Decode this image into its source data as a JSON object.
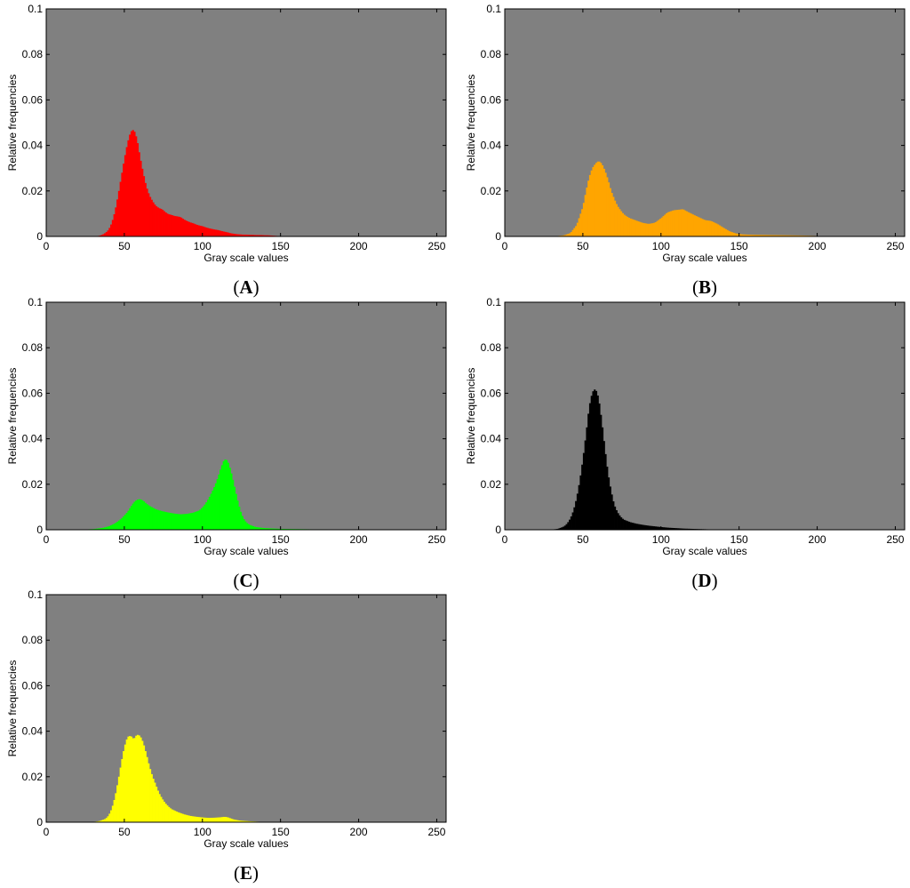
{
  "chart_data": [
    {
      "panel_label": "A",
      "type": "bar",
      "xlabel": "Gray scale values",
      "ylabel": "Relative frequencies",
      "xlim": [
        0,
        256
      ],
      "ylim": [
        0,
        0.1
      ],
      "xticks": [
        0,
        50,
        100,
        150,
        200,
        250
      ],
      "yticks": [
        0,
        0.02,
        0.04,
        0.06,
        0.08,
        0.1
      ],
      "ytick_labels": [
        "0",
        "0.02",
        "0.04",
        "0.06",
        "0.08",
        "0.1"
      ],
      "color": "#ff0000",
      "background": "#808080",
      "bin_width": 1,
      "x": [
        32,
        34,
        36,
        38,
        40,
        42,
        44,
        46,
        48,
        50,
        52,
        54,
        56,
        58,
        60,
        62,
        64,
        66,
        68,
        70,
        72,
        74,
        76,
        78,
        80,
        82,
        84,
        86,
        88,
        90,
        92,
        94,
        96,
        98,
        100,
        102,
        104,
        106,
        108,
        110,
        112,
        114,
        116,
        118,
        120,
        122,
        124,
        126,
        128,
        130,
        132,
        134,
        136,
        138,
        140,
        142,
        144,
        146,
        148,
        150,
        155
      ],
      "values": [
        0.0001,
        0.0003,
        0.0008,
        0.0016,
        0.003,
        0.006,
        0.011,
        0.018,
        0.026,
        0.034,
        0.041,
        0.046,
        0.047,
        0.043,
        0.035,
        0.028,
        0.022,
        0.018,
        0.0155,
        0.0135,
        0.0125,
        0.012,
        0.0108,
        0.0098,
        0.0095,
        0.009,
        0.0088,
        0.0085,
        0.0075,
        0.0068,
        0.0062,
        0.0058,
        0.0052,
        0.0048,
        0.0045,
        0.004,
        0.0036,
        0.0033,
        0.003,
        0.0028,
        0.0024,
        0.0021,
        0.0018,
        0.0014,
        0.0012,
        0.001,
        0.0009,
        0.0008,
        0.0008,
        0.0007,
        0.0007,
        0.0006,
        0.0006,
        0.0006,
        0.0005,
        0.0005,
        0.0004,
        0.0003,
        0.0002,
        0.0001,
        0.0
      ]
    },
    {
      "panel_label": "B",
      "type": "bar",
      "xlabel": "Gray scale values",
      "ylabel": "Relative frequencies",
      "xlim": [
        0,
        256
      ],
      "ylim": [
        0,
        0.1
      ],
      "xticks": [
        0,
        50,
        100,
        150,
        200,
        250
      ],
      "yticks": [
        0,
        0.02,
        0.04,
        0.06,
        0.08,
        0.1
      ],
      "ytick_labels": [
        "0",
        "0.02",
        "0.04",
        "0.06",
        "0.08",
        "0.1"
      ],
      "color": "#ffa500",
      "background": "#808080",
      "bin_width": 1,
      "x": [
        30,
        34,
        38,
        42,
        46,
        50,
        52,
        54,
        56,
        58,
        60,
        62,
        64,
        66,
        68,
        70,
        72,
        74,
        76,
        78,
        80,
        84,
        88,
        92,
        96,
        100,
        104,
        108,
        112,
        114,
        116,
        120,
        124,
        128,
        130,
        132,
        136,
        140,
        144,
        148,
        152,
        160,
        170,
        180,
        190,
        200,
        210
      ],
      "values": [
        0.0001,
        0.0002,
        0.0005,
        0.0015,
        0.005,
        0.013,
        0.02,
        0.026,
        0.03,
        0.032,
        0.0332,
        0.032,
        0.029,
        0.025,
        0.02,
        0.0165,
        0.0135,
        0.0115,
        0.0098,
        0.0088,
        0.008,
        0.007,
        0.006,
        0.0055,
        0.006,
        0.008,
        0.0105,
        0.0115,
        0.0118,
        0.012,
        0.0112,
        0.0098,
        0.0085,
        0.0072,
        0.007,
        0.0068,
        0.0055,
        0.0038,
        0.0022,
        0.0013,
        0.0009,
        0.0007,
        0.0006,
        0.0005,
        0.0004,
        0.0002,
        0.0
      ]
    },
    {
      "panel_label": "C",
      "type": "bar",
      "xlabel": "Gray scale values",
      "ylabel": "Relative frequencies",
      "xlim": [
        0,
        256
      ],
      "ylim": [
        0,
        0.1
      ],
      "xticks": [
        0,
        50,
        100,
        150,
        200,
        250
      ],
      "yticks": [
        0,
        0.02,
        0.04,
        0.06,
        0.08,
        0.1
      ],
      "ytick_labels": [
        "0",
        "0.02",
        "0.04",
        "0.06",
        "0.08",
        "0.1"
      ],
      "color": "#00ff00",
      "background": "#808080",
      "bin_width": 1,
      "x": [
        20,
        30,
        36,
        40,
        44,
        48,
        52,
        54,
        56,
        58,
        60,
        62,
        64,
        66,
        68,
        70,
        74,
        78,
        82,
        86,
        90,
        94,
        98,
        100,
        102,
        104,
        106,
        108,
        110,
        112,
        114,
        116,
        118,
        120,
        122,
        124,
        126,
        128,
        130,
        134,
        140,
        150,
        160,
        170,
        180,
        190,
        200
      ],
      "values": [
        0.0,
        0.0003,
        0.0008,
        0.0015,
        0.0028,
        0.0048,
        0.0078,
        0.01,
        0.012,
        0.0132,
        0.0135,
        0.0128,
        0.0115,
        0.0105,
        0.0098,
        0.009,
        0.0082,
        0.0076,
        0.0071,
        0.0068,
        0.007,
        0.0075,
        0.0085,
        0.0098,
        0.0115,
        0.0138,
        0.0165,
        0.0195,
        0.0232,
        0.0275,
        0.031,
        0.0305,
        0.0262,
        0.0205,
        0.0142,
        0.0088,
        0.0052,
        0.0032,
        0.0022,
        0.0012,
        0.0007,
        0.0004,
        0.0003,
        0.0002,
        0.0002,
        0.0001,
        0.0
      ]
    },
    {
      "panel_label": "D",
      "type": "bar",
      "xlabel": "Gray scale values",
      "ylabel": "Relative frequencies",
      "xlim": [
        0,
        256
      ],
      "ylim": [
        0,
        0.1
      ],
      "xticks": [
        0,
        50,
        100,
        150,
        200,
        250
      ],
      "yticks": [
        0,
        0.02,
        0.04,
        0.06,
        0.08,
        0.1
      ],
      "ytick_labels": [
        "0",
        "0.02",
        "0.04",
        "0.06",
        "0.08",
        "0.1"
      ],
      "color": "#000000",
      "background": "#808080",
      "bin_width": 1,
      "x": [
        30,
        34,
        38,
        40,
        42,
        44,
        46,
        48,
        50,
        52,
        54,
        56,
        58,
        60,
        62,
        64,
        66,
        68,
        70,
        72,
        74,
        76,
        80,
        84,
        88,
        92,
        96,
        100,
        105,
        110,
        115,
        120,
        125,
        130,
        140
      ],
      "values": [
        0.0001,
        0.0004,
        0.0015,
        0.0028,
        0.005,
        0.0085,
        0.014,
        0.0215,
        0.031,
        0.042,
        0.054,
        0.0605,
        0.062,
        0.058,
        0.048,
        0.036,
        0.025,
        0.017,
        0.011,
        0.0078,
        0.0058,
        0.0045,
        0.0034,
        0.0027,
        0.0022,
        0.0018,
        0.0015,
        0.0012,
        0.0009,
        0.0007,
        0.0005,
        0.0004,
        0.0003,
        0.0002,
        0.0
      ]
    },
    {
      "panel_label": "E",
      "type": "bar",
      "xlabel": "Gray scale values",
      "ylabel": "Relative frequencies",
      "xlim": [
        0,
        256
      ],
      "ylim": [
        0,
        0.1
      ],
      "xticks": [
        0,
        50,
        100,
        150,
        200,
        250
      ],
      "yticks": [
        0,
        0.02,
        0.04,
        0.06,
        0.08,
        0.1
      ],
      "ytick_labels": [
        "0",
        "0.02",
        "0.04",
        "0.06",
        "0.08",
        "0.1"
      ],
      "color": "#ffff00",
      "background": "#808080",
      "bin_width": 1,
      "x": [
        30,
        34,
        38,
        40,
        42,
        44,
        46,
        48,
        50,
        52,
        54,
        56,
        58,
        60,
        62,
        64,
        66,
        68,
        70,
        72,
        74,
        76,
        78,
        80,
        84,
        88,
        92,
        96,
        100,
        104,
        108,
        112,
        114,
        116,
        118,
        120,
        124,
        130,
        136,
        140
      ],
      "values": [
        0.0001,
        0.0005,
        0.0015,
        0.003,
        0.006,
        0.011,
        0.018,
        0.026,
        0.033,
        0.0375,
        0.038,
        0.0365,
        0.0385,
        0.038,
        0.035,
        0.03,
        0.0245,
        0.02,
        0.0165,
        0.013,
        0.0105,
        0.0085,
        0.007,
        0.0058,
        0.0045,
        0.0035,
        0.0028,
        0.0024,
        0.0021,
        0.0019,
        0.002,
        0.0022,
        0.0024,
        0.0022,
        0.0017,
        0.0012,
        0.0007,
        0.0004,
        0.0002,
        0.0
      ]
    }
  ]
}
